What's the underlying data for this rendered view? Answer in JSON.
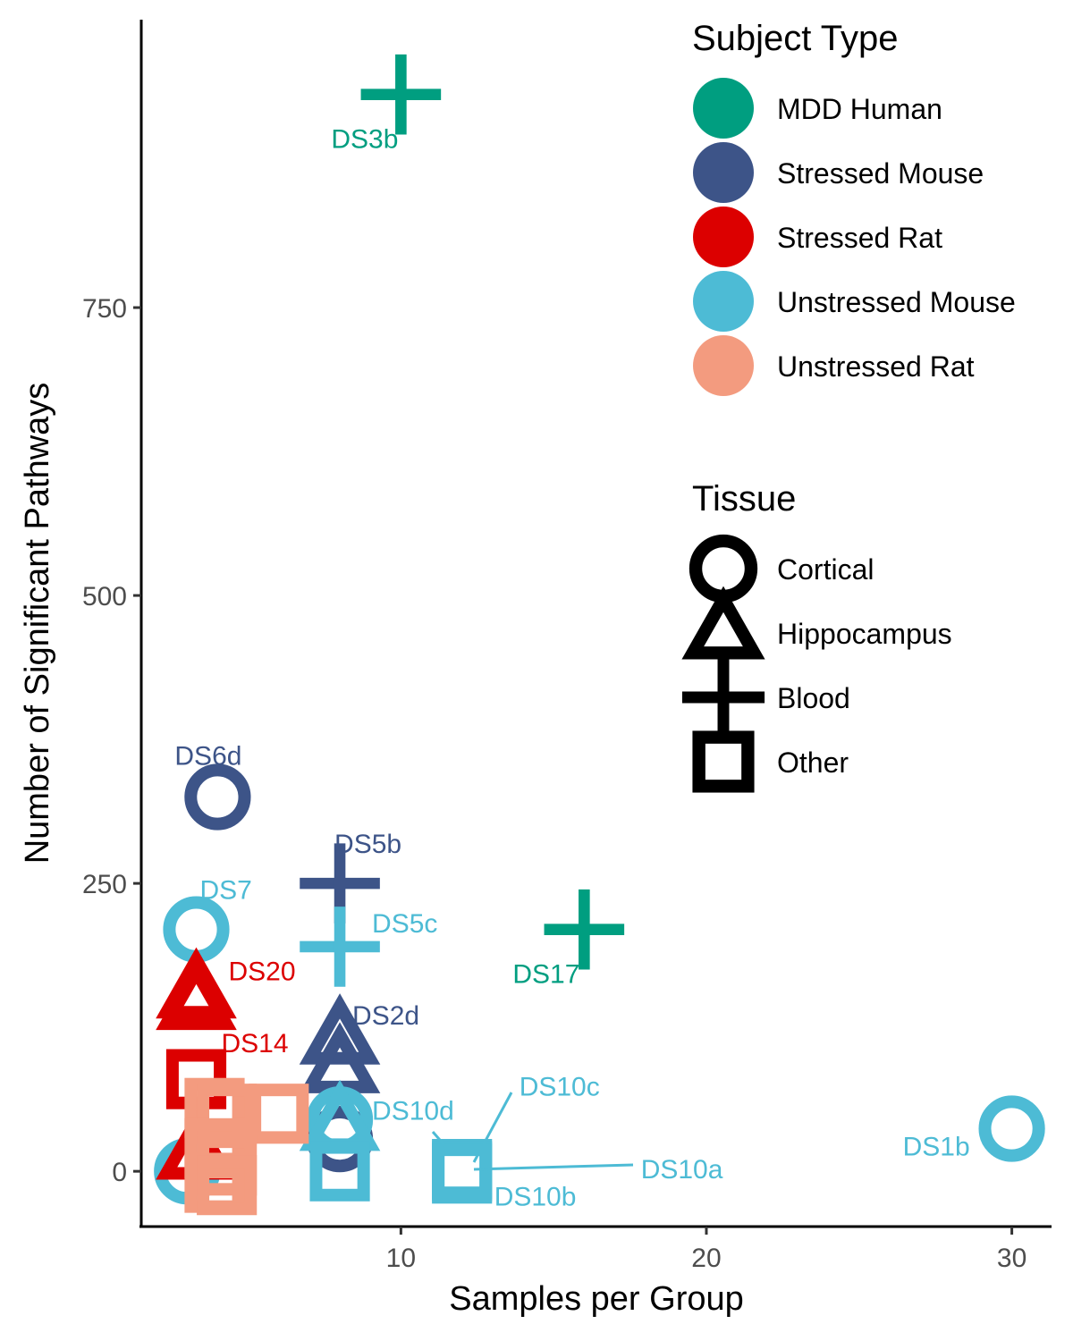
{
  "chart_data": {
    "type": "scatter",
    "title": "",
    "xlabel": "Samples per Group",
    "ylabel": "Number of Significant Pathways",
    "xlim": [
      1.5,
      31.3
    ],
    "ylim": [
      -48,
      1000
    ],
    "x_ticks": [
      10,
      20,
      30
    ],
    "y_ticks": [
      0,
      250,
      500,
      750
    ],
    "grid": false,
    "legend_position": "right",
    "subject_types": [
      {
        "name": "MDD Human",
        "color": "#009E80"
      },
      {
        "name": "Stressed Mouse",
        "color": "#3D5488"
      },
      {
        "name": "Stressed Rat",
        "color": "#DC0000"
      },
      {
        "name": "Unstressed Mouse",
        "color": "#4DBBD5"
      },
      {
        "name": "Unstressed Rat",
        "color": "#F39B7F"
      }
    ],
    "tissues": [
      {
        "name": "Cortical",
        "shape": "circle"
      },
      {
        "name": "Hippocampus",
        "shape": "triangle"
      },
      {
        "name": "Blood",
        "shape": "cross"
      },
      {
        "name": "Other",
        "shape": "square"
      }
    ],
    "points": [
      {
        "x": 10,
        "y": 935,
        "subject": "MDD Human",
        "tissue": "Blood",
        "label": "DS3b"
      },
      {
        "x": 16,
        "y": 210,
        "subject": "MDD Human",
        "tissue": "Blood",
        "label": "DS17"
      },
      {
        "x": 4,
        "y": 325,
        "subject": "Stressed Mouse",
        "tissue": "Cortical",
        "label": "DS6d"
      },
      {
        "x": 8,
        "y": 250,
        "subject": "Stressed Mouse",
        "tissue": "Blood",
        "label": "DS5b"
      },
      {
        "x": 8,
        "y": 115,
        "subject": "Stressed Mouse",
        "tissue": "Hippocampus",
        "label": "DS2d"
      },
      {
        "x": 8,
        "y": 90,
        "subject": "Stressed Mouse",
        "tissue": "Hippocampus",
        "label": ""
      },
      {
        "x": 8,
        "y": 28,
        "subject": "Stressed Mouse",
        "tissue": "Cortical",
        "label": ""
      },
      {
        "x": 3.3,
        "y": 210,
        "subject": "Unstressed Mouse",
        "tissue": "Cortical",
        "label": "DS7"
      },
      {
        "x": 8,
        "y": 195,
        "subject": "Unstressed Mouse",
        "tissue": "Blood",
        "label": "DS5c"
      },
      {
        "x": 8,
        "y": 45,
        "subject": "Unstressed Mouse",
        "tissue": "Cortical",
        "label": ""
      },
      {
        "x": 8,
        "y": 40,
        "subject": "Unstressed Mouse",
        "tissue": "Hippocampus",
        "label": "DS10d"
      },
      {
        "x": 8,
        "y": 0,
        "subject": "Unstressed Mouse",
        "tissue": "Other",
        "label": ""
      },
      {
        "x": 12,
        "y": 2,
        "subject": "Unstressed Mouse",
        "tissue": "Other",
        "label": "DS10c"
      },
      {
        "x": 12,
        "y": 0,
        "subject": "Unstressed Mouse",
        "tissue": "Other",
        "label": "DS10a"
      },
      {
        "x": 12,
        "y": -2,
        "subject": "Unstressed Mouse",
        "tissue": "Other",
        "label": "DS10b"
      },
      {
        "x": 30,
        "y": 37,
        "subject": "Unstressed Mouse",
        "tissue": "Cortical",
        "label": "DS1b"
      },
      {
        "x": 3,
        "y": 0,
        "subject": "Unstressed Mouse",
        "tissue": "Cortical",
        "label": ""
      },
      {
        "x": 3.3,
        "y": 155,
        "subject": "Stressed Rat",
        "tissue": "Hippocampus",
        "label": "DS20"
      },
      {
        "x": 3.3,
        "y": 145,
        "subject": "Stressed Rat",
        "tissue": "Hippocampus",
        "label": ""
      },
      {
        "x": 3.3,
        "y": 80,
        "subject": "Stressed Rat",
        "tissue": "Other",
        "label": "DS14"
      },
      {
        "x": 3.3,
        "y": 15,
        "subject": "Stressed Rat",
        "tissue": "Hippocampus",
        "label": ""
      },
      {
        "x": 3.9,
        "y": 55,
        "subject": "Unstressed Rat",
        "tissue": "Other",
        "label": ""
      },
      {
        "x": 4.3,
        "y": 50,
        "subject": "Unstressed Rat",
        "tissue": "Other",
        "label": ""
      },
      {
        "x": 6,
        "y": 50,
        "subject": "Unstressed Rat",
        "tissue": "Other",
        "label": ""
      },
      {
        "x": 3.9,
        "y": 20,
        "subject": "Unstressed Rat",
        "tissue": "Other",
        "label": ""
      },
      {
        "x": 4.3,
        "y": 5,
        "subject": "Unstressed Rat",
        "tissue": "Other",
        "label": ""
      },
      {
        "x": 3.9,
        "y": -10,
        "subject": "Unstressed Rat",
        "tissue": "Other",
        "label": ""
      },
      {
        "x": 4.3,
        "y": -12,
        "subject": "Unstressed Rat",
        "tissue": "Other",
        "label": ""
      }
    ]
  },
  "legend": {
    "subject_title": "Subject Type",
    "tissue_title": "Tissue"
  }
}
